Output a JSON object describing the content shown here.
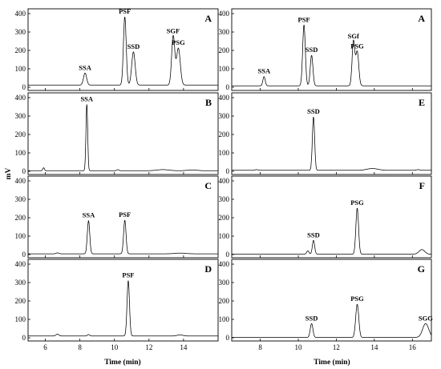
{
  "figure": {
    "y_axis_label": "mV",
    "x_axis_label_left": "Time (min)",
    "x_axis_label_right": "Time (min)"
  },
  "chart_data": [
    {
      "type": "line",
      "column": "left",
      "panel_label": "A",
      "xlim": [
        5,
        16
      ],
      "ylim": [
        0,
        400
      ],
      "x_ticks": [
        6,
        8,
        10,
        12,
        14
      ],
      "y_ticks": [
        0,
        100,
        200,
        300,
        400
      ],
      "baseline": 12,
      "peaks": [
        {
          "x": 8.3,
          "y": 65,
          "width": 0.09,
          "label": "SSA"
        },
        {
          "x": 10.6,
          "y": 370,
          "width": 0.08,
          "label": "PSF"
        },
        {
          "x": 11.1,
          "y": 180,
          "width": 0.1,
          "label": "SSD"
        },
        {
          "x": 13.4,
          "y": 265,
          "width": 0.09,
          "label": "SGF"
        },
        {
          "x": 13.7,
          "y": 200,
          "width": 0.11,
          "label": "PSG"
        }
      ]
    },
    {
      "type": "line",
      "column": "left",
      "panel_label": "B",
      "xlim": [
        5,
        16
      ],
      "ylim": [
        0,
        400
      ],
      "x_ticks": [
        6,
        8,
        10,
        12,
        14
      ],
      "y_ticks": [
        0,
        100,
        200,
        300,
        400
      ],
      "baseline": 3,
      "peaks": [
        {
          "x": 5.9,
          "y": 16,
          "width": 0.05,
          "label": ""
        },
        {
          "x": 8.4,
          "y": 360,
          "width": 0.05,
          "label": "SSA"
        },
        {
          "x": 10.2,
          "y": 6,
          "width": 0.06,
          "label": ""
        },
        {
          "x": 12.8,
          "y": 6,
          "width": 0.35,
          "label": ""
        },
        {
          "x": 14.5,
          "y": 4,
          "width": 0.3,
          "label": ""
        }
      ]
    },
    {
      "type": "line",
      "column": "left",
      "panel_label": "C",
      "xlim": [
        5,
        16
      ],
      "ylim": [
        0,
        400
      ],
      "x_ticks": [
        6,
        8,
        10,
        12,
        14
      ],
      "y_ticks": [
        0,
        100,
        200,
        300,
        400
      ],
      "baseline": 4,
      "peaks": [
        {
          "x": 6.7,
          "y": 5,
          "width": 0.08,
          "label": ""
        },
        {
          "x": 8.5,
          "y": 180,
          "width": 0.07,
          "label": "SSA"
        },
        {
          "x": 10.6,
          "y": 182,
          "width": 0.07,
          "label": "PSF"
        },
        {
          "x": 13.8,
          "y": 4,
          "width": 0.3,
          "label": ""
        }
      ]
    },
    {
      "type": "line",
      "column": "left",
      "panel_label": "D",
      "xlim": [
        5,
        16
      ],
      "ylim": [
        0,
        400
      ],
      "x_ticks": [
        6,
        8,
        10,
        12,
        14
      ],
      "y_ticks": [
        0,
        100,
        200,
        300,
        400
      ],
      "baseline": 10,
      "peaks": [
        {
          "x": 6.7,
          "y": 10,
          "width": 0.08,
          "label": ""
        },
        {
          "x": 8.5,
          "y": 8,
          "width": 0.06,
          "label": ""
        },
        {
          "x": 10.8,
          "y": 300,
          "width": 0.07,
          "label": "PSF"
        },
        {
          "x": 13.8,
          "y": 6,
          "width": 0.15,
          "label": ""
        }
      ]
    },
    {
      "type": "line",
      "column": "right",
      "panel_label": "A",
      "xlim": [
        6.5,
        17
      ],
      "ylim": [
        0,
        400
      ],
      "x_ticks": [
        8,
        10,
        12,
        14,
        16
      ],
      "y_ticks": [
        0,
        100,
        200,
        300,
        400
      ],
      "baseline": 8,
      "peaks": [
        {
          "x": 8.2,
          "y": 50,
          "width": 0.06,
          "label": "SSA"
        },
        {
          "x": 10.3,
          "y": 330,
          "width": 0.07,
          "label": "PSF"
        },
        {
          "x": 10.7,
          "y": 165,
          "width": 0.07,
          "label": "SSD"
        },
        {
          "x": 12.9,
          "y": 240,
          "width": 0.07,
          "label": "SGf"
        },
        {
          "x": 13.1,
          "y": 185,
          "width": 0.08,
          "label": "PSG"
        }
      ]
    },
    {
      "type": "line",
      "column": "right",
      "panel_label": "E",
      "xlim": [
        6.5,
        17
      ],
      "ylim": [
        0,
        400
      ],
      "x_ticks": [
        8,
        10,
        12,
        14,
        16
      ],
      "y_ticks": [
        0,
        100,
        200,
        300,
        400
      ],
      "baseline": 5,
      "peaks": [
        {
          "x": 7.8,
          "y": 4,
          "width": 0.08,
          "label": ""
        },
        {
          "x": 10.8,
          "y": 290,
          "width": 0.06,
          "label": "SSD"
        },
        {
          "x": 13.9,
          "y": 10,
          "width": 0.3,
          "label": ""
        },
        {
          "x": 16.3,
          "y": 4,
          "width": 0.1,
          "label": ""
        }
      ]
    },
    {
      "type": "line",
      "column": "right",
      "panel_label": "F",
      "xlim": [
        6.5,
        17
      ],
      "ylim": [
        0,
        400
      ],
      "x_ticks": [
        8,
        10,
        12,
        14,
        16
      ],
      "y_ticks": [
        0,
        100,
        200,
        300,
        400
      ],
      "baseline": 2,
      "peaks": [
        {
          "x": 10.5,
          "y": 18,
          "width": 0.06,
          "label": ""
        },
        {
          "x": 10.8,
          "y": 75,
          "width": 0.06,
          "label": "SSD"
        },
        {
          "x": 13.1,
          "y": 250,
          "width": 0.07,
          "label": "PSG"
        },
        {
          "x": 16.5,
          "y": 25,
          "width": 0.15,
          "label": ""
        }
      ]
    },
    {
      "type": "line",
      "column": "right",
      "panel_label": "G",
      "xlim": [
        6.5,
        17
      ],
      "ylim": [
        0,
        400
      ],
      "x_ticks": [
        8,
        10,
        12,
        14,
        16
      ],
      "y_ticks": [
        0,
        100,
        200,
        300,
        400
      ],
      "baseline": 2,
      "peaks": [
        {
          "x": 10.7,
          "y": 75,
          "width": 0.07,
          "label": "SSD"
        },
        {
          "x": 13.1,
          "y": 180,
          "width": 0.08,
          "label": "PSG"
        },
        {
          "x": 16.7,
          "y": 75,
          "width": 0.16,
          "label": "SGG"
        }
      ]
    }
  ]
}
